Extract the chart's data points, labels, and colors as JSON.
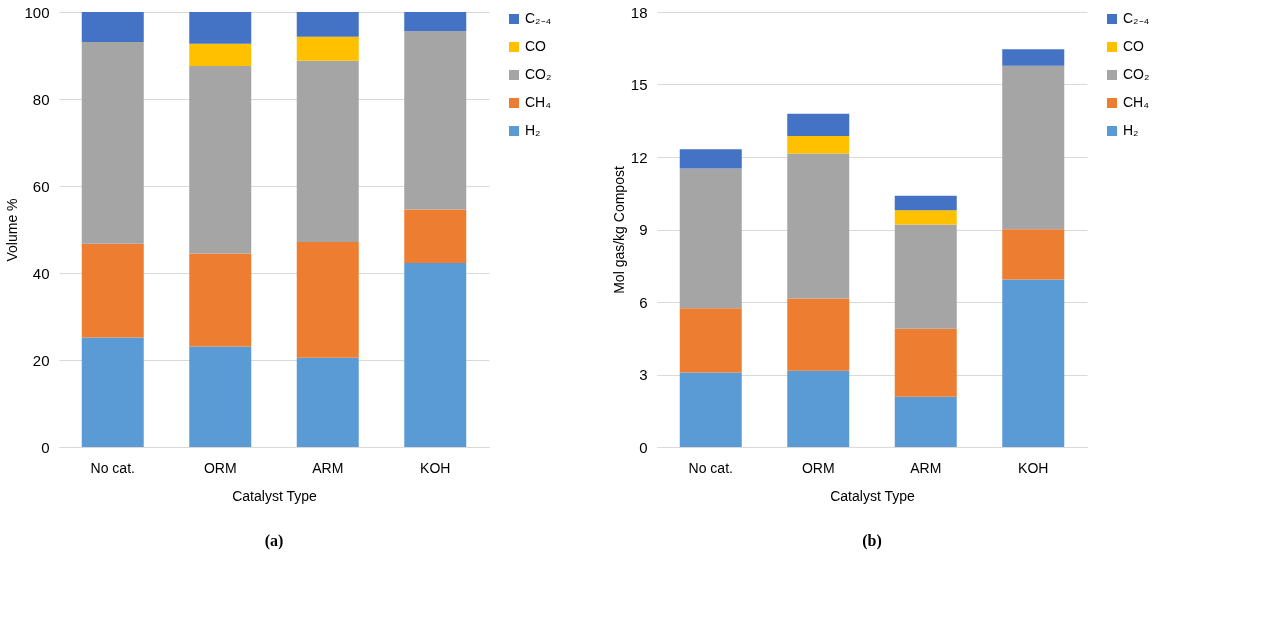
{
  "chart_data": [
    {
      "type": "bar",
      "stacked": true,
      "annotations": [
        "(a)"
      ],
      "xlabel": "Catalyst Type",
      "ylabel": "Volume %",
      "categories": [
        "No cat.",
        "ORM",
        "ARM",
        "KOH"
      ],
      "ylim": [
        0,
        100
      ],
      "yticks": [
        0,
        20,
        40,
        60,
        80,
        100
      ],
      "grid": "y",
      "legend": "right",
      "series": [
        {
          "name": "H₂",
          "color": "#5b9bd5",
          "values": [
            25.2,
            23.1,
            20.5,
            42.3
          ]
        },
        {
          "name": "CH₄",
          "color": "#ed7d31",
          "values": [
            21.5,
            21.4,
            26.6,
            12.3
          ]
        },
        {
          "name": "CO₂",
          "color": "#a5a5a5",
          "values": [
            46.4,
            43.1,
            41.7,
            41.0
          ]
        },
        {
          "name": "CO",
          "color": "#ffc000",
          "values": [
            0,
            5.1,
            5.5,
            0
          ]
        },
        {
          "name": "C₂₋₄",
          "color": "#4472c4",
          "values": [
            6.9,
            7.3,
            5.7,
            4.4
          ]
        }
      ]
    },
    {
      "type": "bar",
      "stacked": true,
      "annotations": [
        "(b)"
      ],
      "xlabel": "Catalyst Type",
      "ylabel": "Mol gas/kg Compost",
      "categories": [
        "No cat.",
        "ORM",
        "ARM",
        "KOH"
      ],
      "ylim": [
        0,
        18
      ],
      "yticks": [
        0,
        3,
        6,
        9,
        12,
        15,
        18
      ],
      "grid": "y",
      "legend": "right",
      "series": [
        {
          "name": "H₂",
          "color": "#5b9bd5",
          "values": [
            3.08,
            3.16,
            2.08,
            6.93
          ]
        },
        {
          "name": "CH₄",
          "color": "#ed7d31",
          "values": [
            2.66,
            2.98,
            2.81,
            2.08
          ]
        },
        {
          "name": "CO₂",
          "color": "#a5a5a5",
          "values": [
            5.78,
            6.0,
            4.32,
            6.77
          ]
        },
        {
          "name": "CO",
          "color": "#ffc000",
          "values": [
            0,
            0.73,
            0.59,
            0
          ]
        },
        {
          "name": "C₂₋₄",
          "color": "#4472c4",
          "values": [
            0.8,
            0.92,
            0.6,
            0.68
          ]
        }
      ]
    }
  ]
}
